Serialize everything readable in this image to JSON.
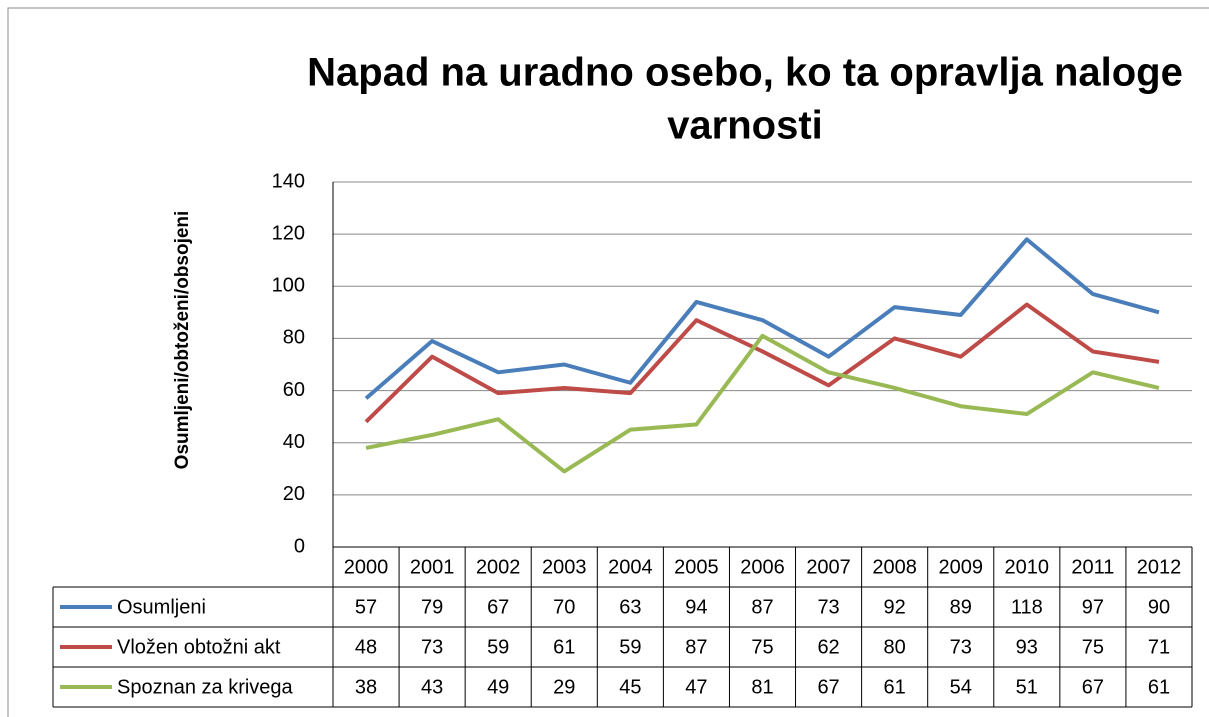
{
  "chart_data": {
    "type": "line",
    "title_lines": [
      "Napad na uradno osebo, ko ta opravlja naloge",
      "varnosti"
    ],
    "y_label": "Osumljeni/obtoženi/obsojeni",
    "categories": [
      "2000",
      "2001",
      "2002",
      "2003",
      "2004",
      "2005",
      "2006",
      "2007",
      "2008",
      "2009",
      "2010",
      "2011",
      "2012"
    ],
    "series": [
      {
        "name": "Osumljeni",
        "color": "#4a7ebb",
        "values": [
          57,
          79,
          67,
          70,
          63,
          94,
          87,
          73,
          92,
          89,
          118,
          97,
          90
        ]
      },
      {
        "name": "Vložen obtožni akt",
        "color": "#be4b48",
        "values": [
          48,
          73,
          59,
          61,
          59,
          87,
          75,
          62,
          80,
          73,
          93,
          75,
          71
        ]
      },
      {
        "name": "Spoznan za krivega",
        "color": "#98b954",
        "values": [
          38,
          43,
          49,
          29,
          45,
          47,
          81,
          67,
          61,
          54,
          51,
          67,
          61
        ]
      }
    ],
    "ylim": [
      0,
      140
    ],
    "yticks": [
      0,
      20,
      40,
      60,
      80,
      100,
      120,
      140
    ],
    "grid": true
  }
}
